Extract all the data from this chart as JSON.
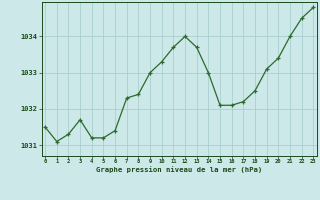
{
  "x": [
    0,
    1,
    2,
    3,
    4,
    5,
    6,
    7,
    8,
    9,
    10,
    11,
    12,
    13,
    14,
    15,
    16,
    17,
    18,
    19,
    20,
    21,
    22,
    23
  ],
  "y": [
    1031.5,
    1031.1,
    1031.3,
    1031.7,
    1031.2,
    1031.2,
    1031.4,
    1032.3,
    1032.4,
    1033.0,
    1033.3,
    1033.7,
    1034.0,
    1033.7,
    1033.0,
    1032.1,
    1032.1,
    1032.2,
    1032.5,
    1033.1,
    1033.4,
    1034.0,
    1034.5,
    1034.8
  ],
  "line_color": "#2d6a2d",
  "marker": "+",
  "bg_color": "#cce8e8",
  "grid_color": "#aacece",
  "xlabel": "Graphe pression niveau de la mer (hPa)",
  "xlabel_color": "#1a4a1a",
  "tick_color": "#1a4a1a",
  "ylim": [
    1030.7,
    1034.95
  ],
  "yticks": [
    1031,
    1032,
    1033,
    1034
  ],
  "xticks": [
    0,
    1,
    2,
    3,
    4,
    5,
    6,
    7,
    8,
    9,
    10,
    11,
    12,
    13,
    14,
    15,
    16,
    17,
    18,
    19,
    20,
    21,
    22,
    23
  ],
  "xlim": [
    -0.3,
    23.3
  ]
}
